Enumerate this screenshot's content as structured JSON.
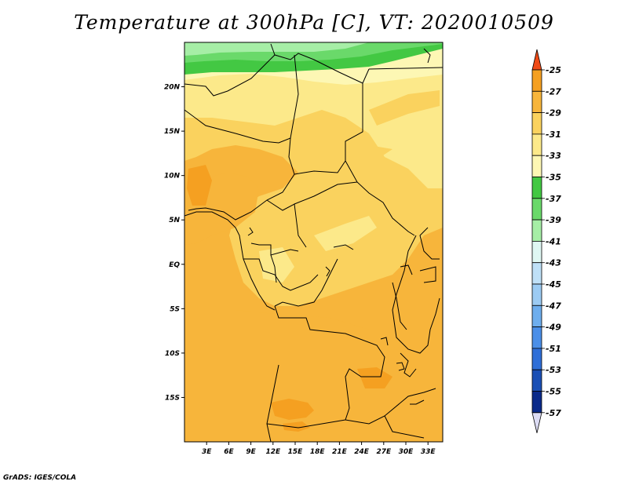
{
  "title": "Temperature at 300hPa [C], VT: 2020010509",
  "credit": "GrADS: IGES/COLA",
  "map": {
    "lon_range": [
      0,
      35
    ],
    "lat_range": [
      -20,
      25
    ],
    "x_ticks": [
      {
        "lon": 3,
        "label": "3E"
      },
      {
        "lon": 6,
        "label": "6E"
      },
      {
        "lon": 9,
        "label": "9E"
      },
      {
        "lon": 12,
        "label": "12E"
      },
      {
        "lon": 15,
        "label": "15E"
      },
      {
        "lon": 18,
        "label": "18E"
      },
      {
        "lon": 21,
        "label": "21E"
      },
      {
        "lon": 24,
        "label": "24E"
      },
      {
        "lon": 27,
        "label": "27E"
      },
      {
        "lon": 30,
        "label": "30E"
      },
      {
        "lon": 33,
        "label": "33E"
      }
    ],
    "y_ticks": [
      {
        "lat": 20,
        "label": "20N"
      },
      {
        "lat": 15,
        "label": "15N"
      },
      {
        "lat": 10,
        "label": "10N"
      },
      {
        "lat": 5,
        "label": "5N"
      },
      {
        "lat": 0,
        "label": "EQ"
      },
      {
        "lat": -5,
        "label": "5S"
      },
      {
        "lat": -10,
        "label": "10S"
      },
      {
        "lat": -15,
        "label": "15S"
      }
    ]
  },
  "colorbar": {
    "levels": [
      {
        "label": "-25",
        "color": "#f28a2a"
      },
      {
        "label": "-27",
        "color": "#f5a021"
      },
      {
        "label": "-29",
        "color": "#f7b53b"
      },
      {
        "label": "-31",
        "color": "#fad25e"
      },
      {
        "label": "-33",
        "color": "#fce98a"
      },
      {
        "label": "-35",
        "color": "#fdf7b4"
      },
      {
        "label": "-37",
        "color": "#43c843"
      },
      {
        "label": "-39",
        "color": "#6ad96a"
      },
      {
        "label": "-41",
        "color": "#a6eea6"
      },
      {
        "label": "-43",
        "color": "#dff7f3"
      },
      {
        "label": "-45",
        "color": "#bfe0f7"
      },
      {
        "label": "-47",
        "color": "#9ccbf3"
      },
      {
        "label": "-49",
        "color": "#6eaeee"
      },
      {
        "label": "-51",
        "color": "#4b8fe8"
      },
      {
        "label": "-53",
        "color": "#2f6fd8"
      },
      {
        "label": "-55",
        "color": "#1a4fb5"
      },
      {
        "label": "-57",
        "color": "#0a2a8a"
      }
    ],
    "top_arrow_color": "#ef4a16",
    "bottom_arrow_color": "#dcdcf4"
  }
}
